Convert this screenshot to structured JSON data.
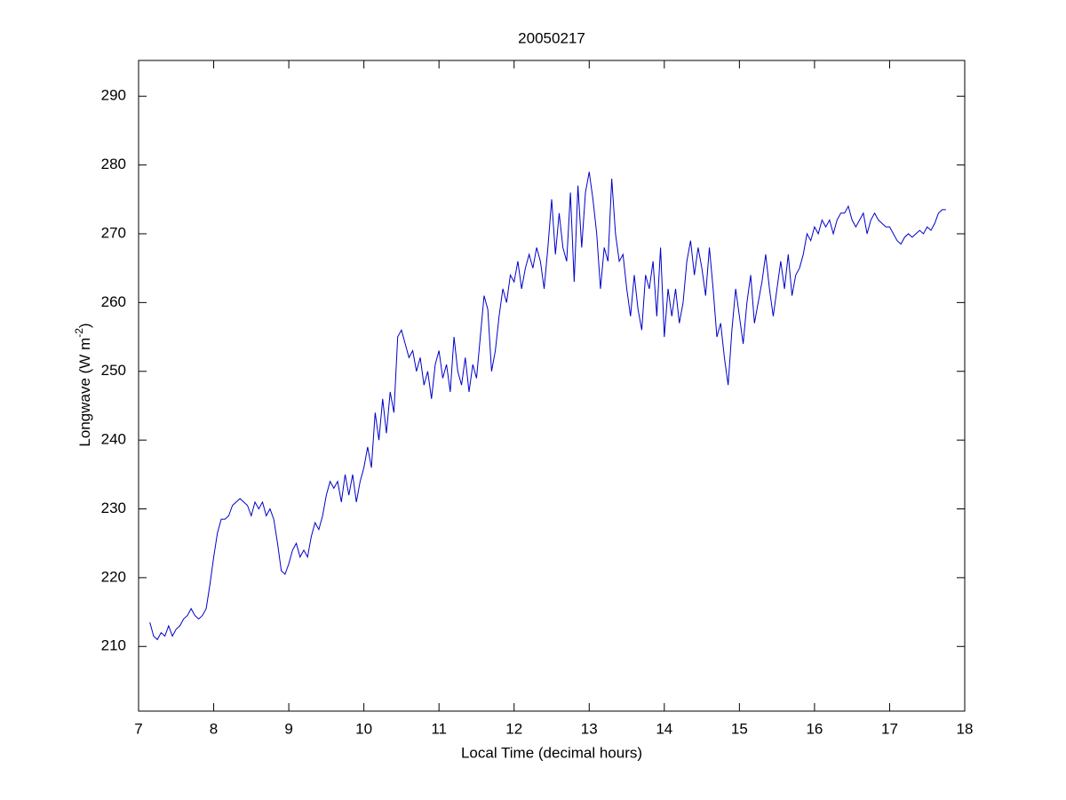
{
  "chart_data": {
    "type": "line",
    "title": "20050217",
    "xlabel": "Local Time (decimal hours)",
    "ylabel": {
      "text": "Longwave (W m",
      "superscript": "-2",
      "suffix": ")"
    },
    "xlim": [
      7,
      18
    ],
    "xticks": [
      7,
      8,
      9,
      10,
      11,
      12,
      13,
      14,
      15,
      16,
      17,
      18
    ],
    "ylim": [
      200.6,
      295.2
    ],
    "yticks": [
      210,
      220,
      230,
      240,
      250,
      260,
      270,
      280,
      290
    ],
    "grid": false,
    "x": [
      7.15,
      7.2,
      7.25,
      7.3,
      7.35,
      7.4,
      7.45,
      7.5,
      7.55,
      7.6,
      7.65,
      7.7,
      7.75,
      7.8,
      7.85,
      7.9,
      7.95,
      8.0,
      8.05,
      8.1,
      8.15,
      8.2,
      8.25,
      8.3,
      8.35,
      8.4,
      8.45,
      8.5,
      8.55,
      8.6,
      8.65,
      8.7,
      8.75,
      8.8,
      8.85,
      8.9,
      8.95,
      9.0,
      9.05,
      9.1,
      9.15,
      9.2,
      9.25,
      9.3,
      9.35,
      9.4,
      9.45,
      9.5,
      9.55,
      9.6,
      9.65,
      9.7,
      9.75,
      9.8,
      9.85,
      9.9,
      9.95,
      10.0,
      10.05,
      10.1,
      10.15,
      10.2,
      10.25,
      10.3,
      10.35,
      10.4,
      10.45,
      10.5,
      10.55,
      10.6,
      10.65,
      10.7,
      10.75,
      10.8,
      10.85,
      10.9,
      10.95,
      11.0,
      11.05,
      11.1,
      11.15,
      11.2,
      11.25,
      11.3,
      11.35,
      11.4,
      11.45,
      11.5,
      11.55,
      11.6,
      11.65,
      11.7,
      11.75,
      11.8,
      11.85,
      11.9,
      11.95,
      12.0,
      12.05,
      12.1,
      12.15,
      12.2,
      12.25,
      12.3,
      12.35,
      12.4,
      12.45,
      12.5,
      12.55,
      12.6,
      12.65,
      12.7,
      12.75,
      12.8,
      12.85,
      12.9,
      12.95,
      13.0,
      13.05,
      13.1,
      13.15,
      13.2,
      13.25,
      13.3,
      13.35,
      13.4,
      13.45,
      13.5,
      13.55,
      13.6,
      13.65,
      13.7,
      13.75,
      13.8,
      13.85,
      13.9,
      13.95,
      14.0,
      14.05,
      14.1,
      14.15,
      14.2,
      14.25,
      14.3,
      14.35,
      14.4,
      14.45,
      14.5,
      14.55,
      14.6,
      14.65,
      14.7,
      14.75,
      14.8,
      14.85,
      14.9,
      14.95,
      15.0,
      15.05,
      15.1,
      15.15,
      15.2,
      15.25,
      15.3,
      15.35,
      15.4,
      15.45,
      15.5,
      15.55,
      15.6,
      15.65,
      15.7,
      15.75,
      15.8,
      15.85,
      15.9,
      15.95,
      16.0,
      16.05,
      16.1,
      16.15,
      16.2,
      16.25,
      16.3,
      16.35,
      16.4,
      16.45,
      16.5,
      16.55,
      16.6,
      16.65,
      16.7,
      16.75,
      16.8,
      16.85,
      16.9,
      16.95,
      17.0,
      17.05,
      17.1,
      17.15,
      17.2,
      17.25,
      17.3,
      17.35,
      17.4,
      17.45,
      17.5,
      17.55,
      17.6,
      17.65,
      17.7,
      17.75
    ],
    "series": [
      {
        "color": "#0000c8",
        "values": [
          213.5,
          211.5,
          211,
          212,
          211.5,
          213,
          211.5,
          212.5,
          213,
          214,
          214.5,
          215.5,
          214.5,
          214,
          214.5,
          215.5,
          219,
          223,
          226.5,
          228.5,
          228.5,
          229,
          230.5,
          231,
          231.5,
          231,
          230.5,
          229,
          231,
          230,
          231,
          229,
          230,
          228.5,
          225,
          221,
          220.5,
          222,
          224,
          225,
          223,
          224,
          223,
          226,
          228,
          227,
          229,
          232,
          234,
          233,
          234,
          231,
          235,
          232,
          235,
          231,
          234,
          236,
          239,
          236,
          244,
          240,
          246,
          241,
          247,
          244,
          255,
          256,
          254,
          252,
          253,
          250,
          252,
          248,
          250,
          246,
          251,
          253,
          249,
          251,
          247,
          255,
          250,
          248,
          252,
          247,
          251,
          249,
          255,
          261,
          259,
          250,
          253,
          258,
          262,
          260,
          264,
          263,
          266,
          262,
          265,
          267,
          265,
          268,
          266,
          262,
          268,
          275,
          267,
          273,
          268,
          266,
          276,
          263,
          277,
          268,
          276,
          279,
          275,
          270,
          262,
          268,
          266,
          278,
          270,
          266,
          267,
          262,
          258,
          264,
          259,
          256,
          264,
          262,
          266,
          258,
          268,
          255,
          262,
          258,
          262,
          257,
          260,
          266,
          269,
          264,
          268,
          265,
          261,
          268,
          262,
          255,
          257,
          252,
          248,
          256,
          262,
          258,
          254,
          260,
          264,
          257,
          260,
          263,
          267,
          262,
          258,
          262,
          266,
          262,
          267,
          261,
          264,
          265,
          267,
          270,
          269,
          271,
          270,
          272,
          271,
          272,
          270,
          272,
          273,
          273,
          274,
          272,
          271,
          272,
          273,
          270,
          272,
          273,
          272,
          271.5,
          271,
          271,
          270,
          269,
          268.5,
          269.5,
          270,
          269.5,
          270,
          270.5,
          270,
          271,
          270.5,
          271.5,
          273,
          273.5,
          273.5
        ]
      }
    ]
  }
}
